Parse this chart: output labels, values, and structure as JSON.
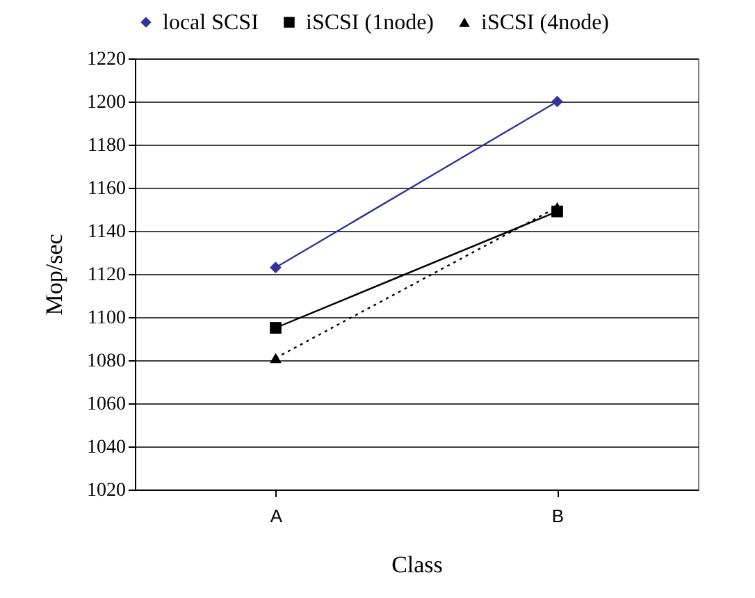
{
  "chart_data": {
    "type": "line",
    "xlabel": "Class",
    "ylabel": "Mop/sec",
    "categories": [
      "A",
      "B"
    ],
    "series": [
      {
        "name": "local SCSI",
        "color": "#333399",
        "values": [
          1123,
          1200
        ],
        "marker": "diamond",
        "line_style": "solid"
      },
      {
        "name": "iSCSI (1node)",
        "color": "#000000",
        "values": [
          1095,
          1149
        ],
        "marker": "square",
        "line_style": "solid"
      },
      {
        "name": "iSCSI (4node)",
        "color": "#000000",
        "values": [
          1081,
          1151
        ],
        "marker": "triangle",
        "line_style": "dotted"
      }
    ],
    "ylim": [
      1020,
      1220
    ],
    "yticks": [
      1020,
      1040,
      1060,
      1080,
      1100,
      1120,
      1140,
      1160,
      1180,
      1200,
      1220
    ],
    "grid": "y",
    "legend": "top"
  }
}
